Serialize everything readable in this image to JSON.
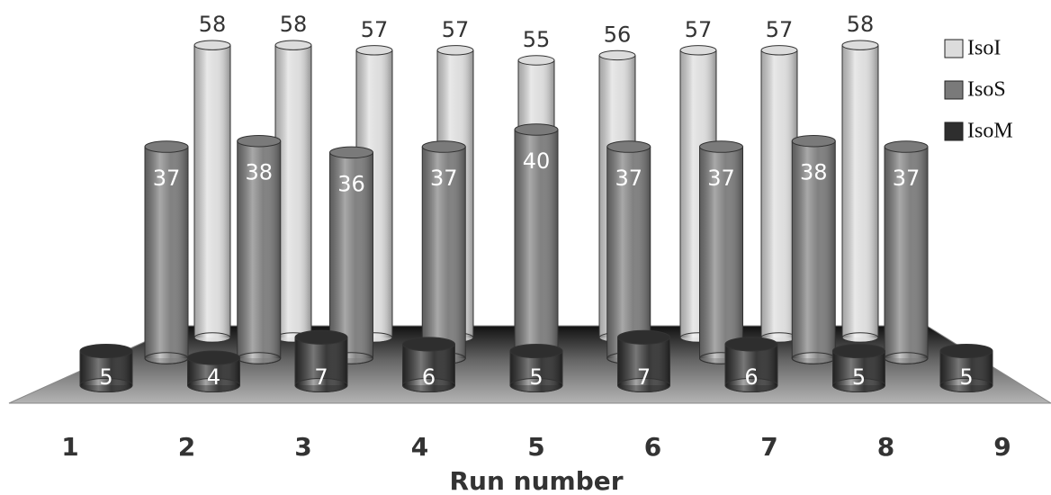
{
  "chart_data": {
    "type": "bar3d-cylinder",
    "x_label": "Run number",
    "categories": [
      "1",
      "2",
      "3",
      "4",
      "5",
      "6",
      "7",
      "8",
      "9"
    ],
    "series": [
      {
        "name": "IsoI",
        "color": "#dcdcdc",
        "values": [
          58,
          58,
          57,
          57,
          55,
          56,
          57,
          57,
          58
        ]
      },
      {
        "name": "IsoS",
        "color": "#7a7a7a",
        "values": [
          37,
          38,
          36,
          37,
          40,
          37,
          37,
          38,
          37
        ]
      },
      {
        "name": "IsoM",
        "color": "#2e2e2e",
        "values": [
          5,
          4,
          7,
          6,
          5,
          7,
          6,
          5,
          5
        ]
      }
    ]
  }
}
